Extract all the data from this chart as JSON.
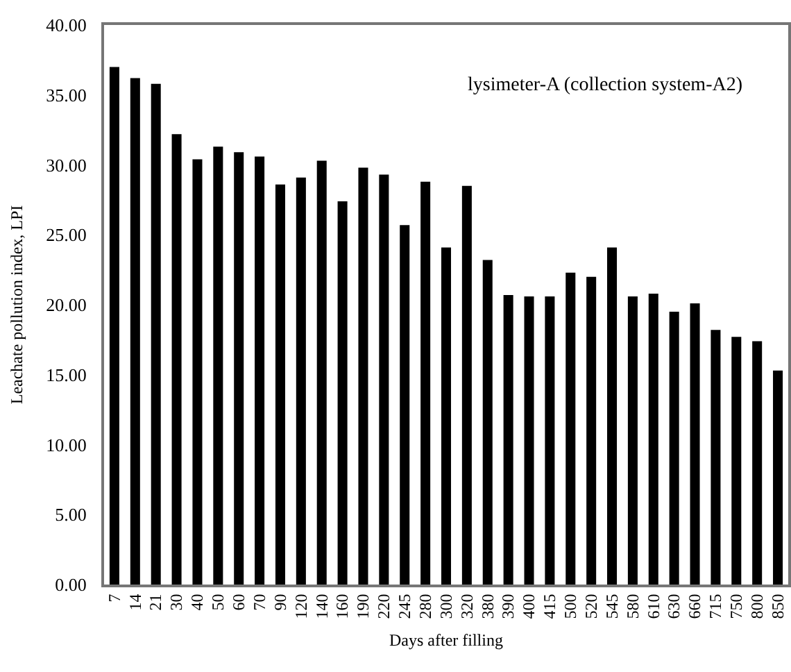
{
  "chart_data": {
    "type": "bar",
    "xlabel": "Days after filling",
    "ylabel": "Leachate pollution index, LPI",
    "annotations": [
      "lysimeter-A (collection system-A2)"
    ],
    "categories": [
      "7",
      "14",
      "21",
      "30",
      "40",
      "50",
      "60",
      "70",
      "90",
      "120",
      "140",
      "160",
      "190",
      "220",
      "245",
      "280",
      "300",
      "320",
      "380",
      "390",
      "400",
      "415",
      "500",
      "520",
      "545",
      "580",
      "610",
      "630",
      "660",
      "715",
      "750",
      "800",
      "850"
    ],
    "values": [
      37.0,
      36.2,
      35.8,
      32.2,
      30.4,
      31.3,
      30.9,
      30.6,
      28.6,
      29.1,
      30.3,
      27.4,
      29.8,
      29.3,
      25.7,
      28.8,
      24.1,
      28.5,
      23.2,
      20.7,
      20.6,
      20.6,
      22.3,
      22.0,
      24.1,
      20.6,
      20.8,
      19.5,
      20.1,
      18.2,
      17.7,
      17.4,
      15.3
    ],
    "color": "#000000",
    "ylim": [
      0,
      40
    ],
    "yticks": [
      {
        "value": 0,
        "label": "0.00"
      },
      {
        "value": 5,
        "label": "5.00"
      },
      {
        "value": 10,
        "label": "10.00"
      },
      {
        "value": 15,
        "label": "15.00"
      },
      {
        "value": 20,
        "label": "20.00"
      },
      {
        "value": 25,
        "label": "25.00"
      },
      {
        "value": 30,
        "label": "30.00"
      },
      {
        "value": 35,
        "label": "35.00"
      },
      {
        "value": 40,
        "label": "40.00"
      }
    ]
  }
}
